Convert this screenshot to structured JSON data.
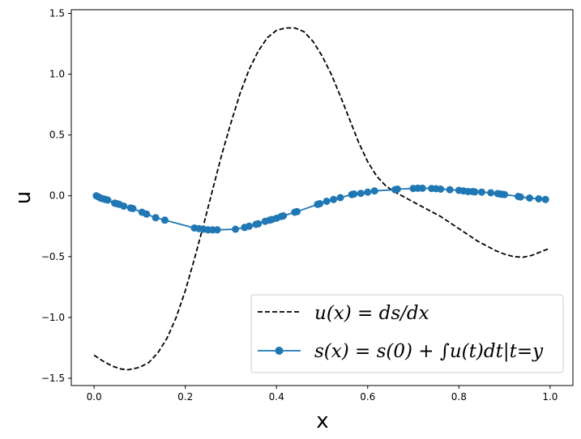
{
  "chart_data": {
    "type": "line",
    "xlabel": "x",
    "ylabel": "u",
    "xlim": [
      -0.05,
      1.05
    ],
    "ylim": [
      -1.56,
      1.53
    ],
    "x_ticks": [
      0.0,
      0.2,
      0.4,
      0.6,
      0.8,
      1.0
    ],
    "x_tick_labels": [
      "0.0",
      "0.2",
      "0.4",
      "0.6",
      "0.8",
      "1.0"
    ],
    "y_ticks": [
      -1.5,
      -1.0,
      -0.5,
      0.0,
      0.5,
      1.0,
      1.5
    ],
    "y_tick_labels": [
      "−1.5",
      "−1.0",
      "−0.5",
      "0.0",
      "0.5",
      "1.0",
      "1.5"
    ],
    "grid": false,
    "legend_position": "lower-right",
    "series": [
      {
        "name": "u(x) = ds/dx",
        "style": "dashed",
        "color": "#000000",
        "points": [
          [
            0.0,
            -1.31
          ],
          [
            0.02,
            -1.36
          ],
          [
            0.04,
            -1.4
          ],
          [
            0.06,
            -1.425
          ],
          [
            0.075,
            -1.43
          ],
          [
            0.1,
            -1.41
          ],
          [
            0.12,
            -1.37
          ],
          [
            0.14,
            -1.29
          ],
          [
            0.16,
            -1.17
          ],
          [
            0.18,
            -1.0
          ],
          [
            0.2,
            -0.78
          ],
          [
            0.22,
            -0.52
          ],
          [
            0.24,
            -0.24
          ],
          [
            0.26,
            0.05
          ],
          [
            0.28,
            0.34
          ],
          [
            0.3,
            0.6
          ],
          [
            0.32,
            0.84
          ],
          [
            0.34,
            1.04
          ],
          [
            0.36,
            1.19
          ],
          [
            0.38,
            1.3
          ],
          [
            0.4,
            1.36
          ],
          [
            0.42,
            1.38
          ],
          [
            0.44,
            1.38
          ],
          [
            0.46,
            1.35
          ],
          [
            0.48,
            1.27
          ],
          [
            0.5,
            1.15
          ],
          [
            0.52,
            1.0
          ],
          [
            0.54,
            0.82
          ],
          [
            0.56,
            0.63
          ],
          [
            0.58,
            0.44
          ],
          [
            0.6,
            0.28
          ],
          [
            0.62,
            0.16
          ],
          [
            0.64,
            0.08
          ],
          [
            0.66,
            0.03
          ],
          [
            0.68,
            -0.01
          ],
          [
            0.7,
            -0.05
          ],
          [
            0.72,
            -0.09
          ],
          [
            0.74,
            -0.13
          ],
          [
            0.76,
            -0.17
          ],
          [
            0.78,
            -0.22
          ],
          [
            0.8,
            -0.27
          ],
          [
            0.82,
            -0.32
          ],
          [
            0.84,
            -0.37
          ],
          [
            0.86,
            -0.41
          ],
          [
            0.88,
            -0.45
          ],
          [
            0.9,
            -0.48
          ],
          [
            0.92,
            -0.5
          ],
          [
            0.94,
            -0.505
          ],
          [
            0.96,
            -0.49
          ],
          [
            0.98,
            -0.46
          ],
          [
            1.0,
            -0.43
          ]
        ]
      },
      {
        "name": "s(x) = s(0) + ∫u(t)dt|t=y",
        "style": "line-markers",
        "color": "#1f77b4",
        "points": [
          [
            0.005,
            0.0
          ],
          [
            0.01,
            -0.01
          ],
          [
            0.015,
            -0.02
          ],
          [
            0.02,
            -0.025
          ],
          [
            0.025,
            -0.03
          ],
          [
            0.03,
            -0.035
          ],
          [
            0.045,
            -0.06
          ],
          [
            0.05,
            -0.065
          ],
          [
            0.055,
            -0.07
          ],
          [
            0.065,
            -0.085
          ],
          [
            0.08,
            -0.1
          ],
          [
            0.085,
            -0.105
          ],
          [
            0.105,
            -0.135
          ],
          [
            0.115,
            -0.15
          ],
          [
            0.135,
            -0.18
          ],
          [
            0.155,
            -0.2
          ],
          [
            0.22,
            -0.265
          ],
          [
            0.23,
            -0.27
          ],
          [
            0.24,
            -0.275
          ],
          [
            0.25,
            -0.28
          ],
          [
            0.26,
            -0.28
          ],
          [
            0.27,
            -0.28
          ],
          [
            0.31,
            -0.275
          ],
          [
            0.33,
            -0.26
          ],
          [
            0.34,
            -0.25
          ],
          [
            0.355,
            -0.235
          ],
          [
            0.36,
            -0.23
          ],
          [
            0.375,
            -0.21
          ],
          [
            0.385,
            -0.2
          ],
          [
            0.39,
            -0.195
          ],
          [
            0.4,
            -0.185
          ],
          [
            0.41,
            -0.17
          ],
          [
            0.415,
            -0.165
          ],
          [
            0.44,
            -0.135
          ],
          [
            0.445,
            -0.13
          ],
          [
            0.49,
            -0.07
          ],
          [
            0.495,
            -0.065
          ],
          [
            0.51,
            -0.045
          ],
          [
            0.525,
            -0.03
          ],
          [
            0.54,
            -0.015
          ],
          [
            0.565,
            0.01
          ],
          [
            0.57,
            0.015
          ],
          [
            0.585,
            0.02
          ],
          [
            0.6,
            0.03
          ],
          [
            0.615,
            0.04
          ],
          [
            0.66,
            0.05
          ],
          [
            0.665,
            0.055
          ],
          [
            0.7,
            0.06
          ],
          [
            0.71,
            0.062
          ],
          [
            0.72,
            0.062
          ],
          [
            0.74,
            0.06
          ],
          [
            0.75,
            0.058
          ],
          [
            0.76,
            0.055
          ],
          [
            0.78,
            0.05
          ],
          [
            0.8,
            0.045
          ],
          [
            0.81,
            0.04
          ],
          [
            0.82,
            0.035
          ],
          [
            0.83,
            0.035
          ],
          [
            0.835,
            0.032
          ],
          [
            0.85,
            0.03
          ],
          [
            0.87,
            0.025
          ],
          [
            0.885,
            0.018
          ],
          [
            0.89,
            0.015
          ],
          [
            0.895,
            0.012
          ],
          [
            0.9,
            0.01
          ],
          [
            0.93,
            -0.005
          ],
          [
            0.935,
            -0.01
          ],
          [
            0.955,
            -0.018
          ],
          [
            0.975,
            -0.025
          ],
          [
            0.99,
            -0.03
          ]
        ]
      }
    ]
  }
}
